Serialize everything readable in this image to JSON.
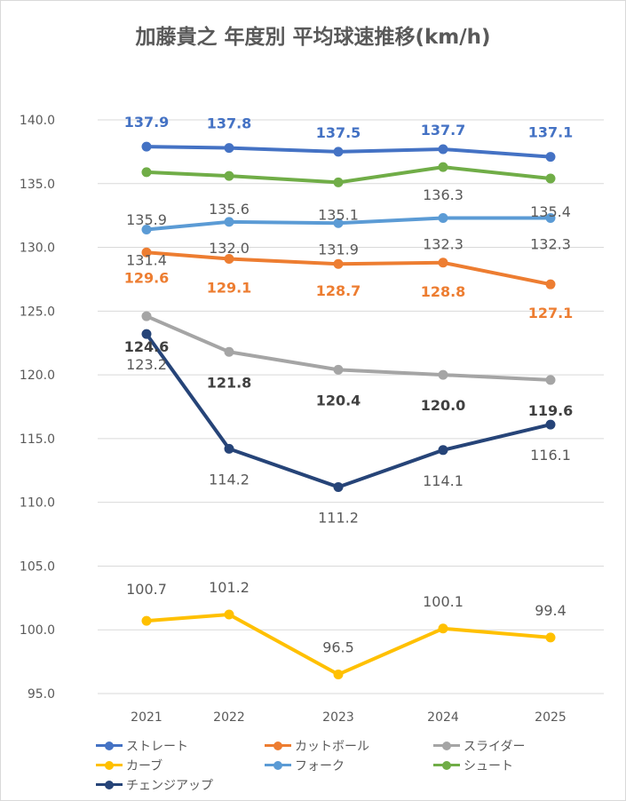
{
  "chart_data": {
    "type": "line",
    "title": "加藤貴之 年度別 平均球速推移(km/h)",
    "categories": [
      "2021",
      "2022",
      "2023",
      "2024",
      "2025"
    ],
    "ylim": [
      95,
      140
    ],
    "yticks": [
      "95.0",
      "100.0",
      "105.0",
      "110.0",
      "115.0",
      "120.0",
      "125.0",
      "130.0",
      "135.0",
      "140.0"
    ],
    "grid": true,
    "legend_position": "bottom",
    "series": [
      {
        "name": "ストレート",
        "color": "#4472c4",
        "values": [
          137.9,
          137.8,
          137.5,
          137.7,
          137.1
        ],
        "labels": [
          "137.9",
          "137.8",
          "137.5",
          "137.7",
          "137.1"
        ]
      },
      {
        "name": "カットボール",
        "color": "#ed7d31",
        "values": [
          129.6,
          129.1,
          128.7,
          128.8,
          127.1
        ],
        "labels": [
          "129.6",
          "129.1",
          "128.7",
          "128.8",
          "127.1"
        ]
      },
      {
        "name": "スライダー",
        "color": "#a5a5a5",
        "values": [
          124.6,
          121.8,
          120.4,
          120.0,
          119.6
        ],
        "labels": [
          "124.6",
          "121.8",
          "120.4",
          "120.0",
          "119.6"
        ]
      },
      {
        "name": "カーブ",
        "color": "#ffc000",
        "values": [
          100.7,
          101.2,
          96.5,
          100.1,
          99.4
        ],
        "labels": [
          "100.7",
          "101.2",
          "96.5",
          "100.1",
          "99.4"
        ]
      },
      {
        "name": "フォーク",
        "color": "#5b9bd5",
        "values": [
          131.4,
          132.0,
          131.9,
          132.3,
          132.3
        ],
        "labels": [
          "131.4",
          "132.0",
          "131.9",
          "132.3",
          "132.3"
        ]
      },
      {
        "name": "シュート",
        "color": "#70ad47",
        "values": [
          135.9,
          135.6,
          135.1,
          136.3,
          135.4
        ],
        "labels": [
          "135.9",
          "135.6",
          "135.1",
          "136.3",
          "135.4"
        ]
      },
      {
        "name": "チェンジアップ",
        "color": "#264478",
        "values": [
          123.2,
          114.2,
          111.2,
          114.1,
          116.1
        ],
        "labels": [
          "123.2",
          "114.2",
          "111.2",
          "114.1",
          "116.1"
        ]
      }
    ]
  }
}
